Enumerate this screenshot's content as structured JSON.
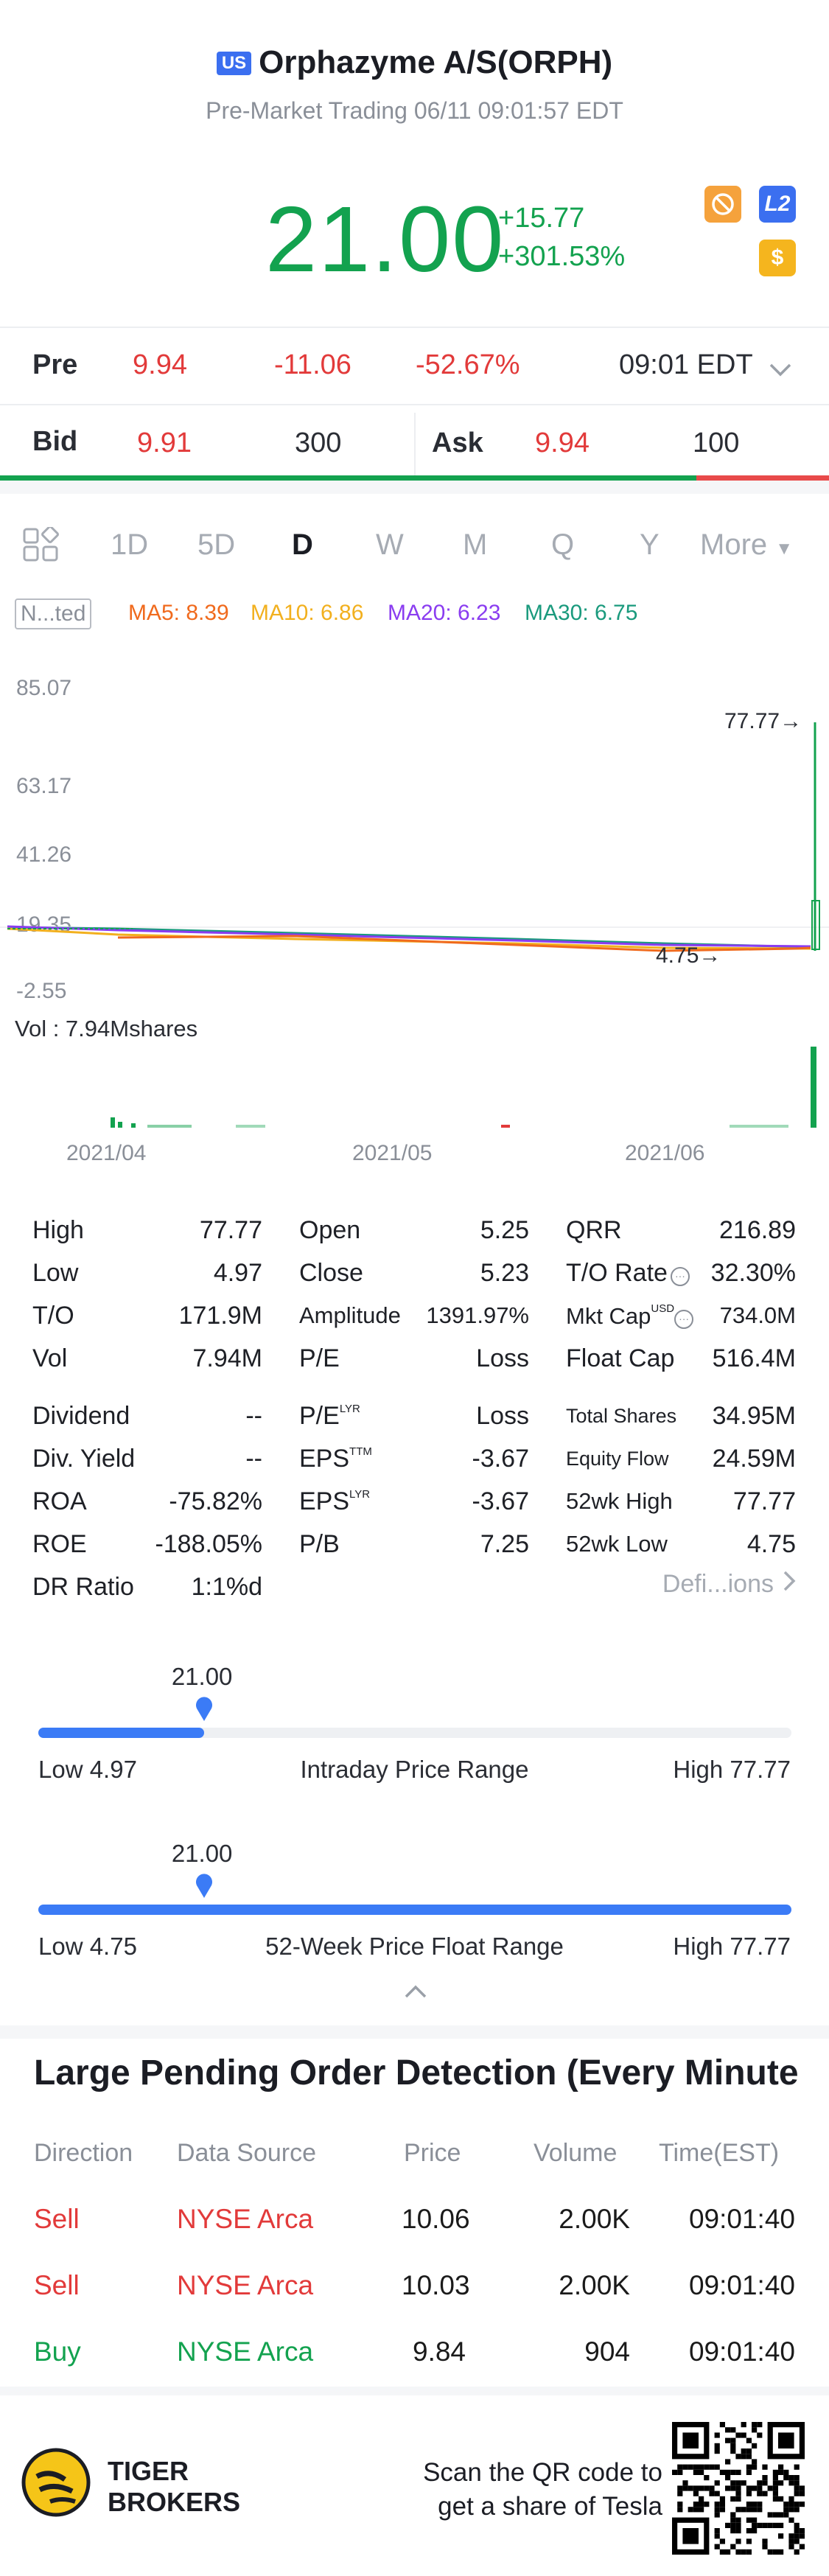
{
  "header": {
    "market_badge": "US",
    "title": "Orphazyme A/S(ORPH)",
    "subtitle": "Pre-Market Trading 06/11 09:01:57 EDT"
  },
  "quote": {
    "price": "21.00",
    "change": "+15.77",
    "change_pct": "+301.53%",
    "icons": [
      "no-shorting-icon",
      "level2-icon",
      "dollar-icon"
    ],
    "icon_labels": {
      "l2": "L2",
      "dollar": "$"
    }
  },
  "pre": {
    "label": "Pre",
    "price": "9.94",
    "change": "-11.06",
    "change_pct": "-52.67%",
    "time": "09:01 EDT"
  },
  "bidask": {
    "bid_label": "Bid",
    "bid_price": "9.91",
    "bid_size": "300",
    "ask_label": "Ask",
    "ask_price": "9.94",
    "ask_size": "100",
    "bid_ratio": 0.84
  },
  "tabs": {
    "items": [
      "1D",
      "5D",
      "D",
      "W",
      "M",
      "Q",
      "Y"
    ],
    "active": "D",
    "more": "More"
  },
  "indicators": {
    "adjust": "N...ted",
    "ma5": "MA5: 8.39",
    "ma10": "MA10: 6.86",
    "ma20": "MA20: 6.23",
    "ma30": "MA30: 6.75",
    "colors": {
      "ma5": "#f06a1d",
      "ma10": "#f2b01e",
      "ma20": "#8a3cf0",
      "ma30": "#1a9a7d"
    }
  },
  "chart": {
    "y_ticks": [
      "85.07",
      "63.17",
      "41.26",
      "19.35",
      "-2.55"
    ],
    "high_marker": "77.77",
    "low_marker": "4.75",
    "vol_label": "Vol  : 7.94Mshares",
    "x_ticks": [
      "2021/04",
      "2021/05",
      "2021/06"
    ]
  },
  "stats": {
    "col1": [
      {
        "label": "High",
        "value": "77.77"
      },
      {
        "label": "Low",
        "value": "4.97"
      },
      {
        "label": "T/O",
        "value": "171.9M"
      },
      {
        "label": "Vol",
        "value": "7.94M"
      }
    ],
    "col2": [
      {
        "label": "Open",
        "value": "5.25"
      },
      {
        "label": "Close",
        "value": "5.23"
      },
      {
        "label": "Amplitude",
        "value": "1391.97%"
      },
      {
        "label": "P/E",
        "value": "Loss"
      }
    ],
    "col3": [
      {
        "label": "QRR",
        "value": "216.89"
      },
      {
        "label": "T/O Rate",
        "value": "32.30%"
      },
      {
        "label": "Mkt Cap",
        "sup": "USD",
        "value": "734.0M"
      },
      {
        "label": "Float Cap",
        "value": "516.4M"
      }
    ],
    "col1b": [
      {
        "label": "Dividend",
        "value": "--"
      },
      {
        "label": "Div. Yield",
        "value": "--"
      },
      {
        "label": "ROA",
        "value": "-75.82%"
      },
      {
        "label": "ROE",
        "value": "-188.05%"
      },
      {
        "label": "DR Ratio",
        "value": "1:1%d"
      }
    ],
    "col2b": [
      {
        "label": "P/E",
        "sup": "LYR",
        "value": "Loss"
      },
      {
        "label": "EPS",
        "sup": "TTM",
        "value": "-3.67"
      },
      {
        "label": "EPS",
        "sup": "LYR",
        "value": "-3.67"
      },
      {
        "label": "P/B",
        "value": "7.25"
      }
    ],
    "col3b": [
      {
        "label": "Total Shares",
        "value": "34.95M"
      },
      {
        "label": "Equity Flow",
        "value": "24.59M"
      },
      {
        "label": "52wk High",
        "value": "77.77"
      },
      {
        "label": "52wk Low",
        "value": "4.75"
      }
    ],
    "definitions": "Defi...ions"
  },
  "ranges": {
    "intraday": {
      "current": "21.00",
      "low": "Low 4.97",
      "title": "Intraday Price Range",
      "high": "High 77.77",
      "fraction": 0.22
    },
    "week52": {
      "current": "21.00",
      "low": "Low 4.75",
      "title": "52-Week Price Float Range",
      "high": "High 77.77",
      "fraction": 0.22
    }
  },
  "large_orders": {
    "title": "Large Pending Order Detection (Every Minute",
    "headers": [
      "Direction",
      "Data Source",
      "Price",
      "Volume",
      "Time(EST)"
    ],
    "rows": [
      {
        "direction": "Sell",
        "source": "NYSE Arca",
        "price": "10.06",
        "volume": "2.00K",
        "time": "09:01:40"
      },
      {
        "direction": "Sell",
        "source": "NYSE Arca",
        "price": "10.03",
        "volume": "2.00K",
        "time": "09:01:40"
      },
      {
        "direction": "Buy",
        "source": "NYSE Arca",
        "price": "9.84",
        "volume": "904",
        "time": "09:01:40"
      }
    ]
  },
  "footer": {
    "brand_line1": "TIGER",
    "brand_line2": "BROKERS",
    "cta_line1": "Scan the QR code to",
    "cta_line2": "get a share of Tesla"
  }
}
